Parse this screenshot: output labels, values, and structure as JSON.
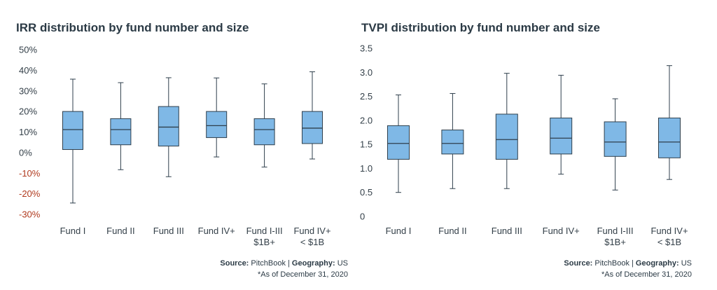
{
  "chart_data": [
    {
      "type": "box",
      "title": "IRR distribution by fund number and size",
      "categories": [
        [
          "Fund I"
        ],
        [
          "Fund II"
        ],
        [
          "Fund III"
        ],
        [
          "Fund IV+"
        ],
        [
          "Fund I-III",
          "$1B+"
        ],
        [
          "Fund IV+",
          "< $1B"
        ]
      ],
      "y_ticks": [
        "50%",
        "40%",
        "30%",
        "20%",
        "10%",
        "0%",
        "-10%",
        "-20%",
        "-30%"
      ],
      "ylim": [
        -30,
        50
      ],
      "negative_tick_color": "#b03a1e",
      "box_fill": "#7fb8e6",
      "box_stroke": "#2f3f4c",
      "series": [
        {
          "min": -24.5,
          "q1": 1.5,
          "median": 11.2,
          "q3": 20.0,
          "max": 35.7
        },
        {
          "min": -8.3,
          "q1": 3.8,
          "median": 11.2,
          "q3": 16.5,
          "max": 34.0
        },
        {
          "min": -11.7,
          "q1": 3.2,
          "median": 12.4,
          "q3": 22.4,
          "max": 36.4
        },
        {
          "min": -2.1,
          "q1": 7.3,
          "median": 13.1,
          "q3": 20.0,
          "max": 36.3
        },
        {
          "min": -7.0,
          "q1": 3.8,
          "median": 11.2,
          "q3": 16.5,
          "max": 33.4
        },
        {
          "min": -3.1,
          "q1": 4.4,
          "median": 11.9,
          "q3": 20.0,
          "max": 39.3
        }
      ]
    },
    {
      "type": "box",
      "title": "TVPI distribution by fund number and size",
      "categories": [
        [
          "Fund I"
        ],
        [
          "Fund II"
        ],
        [
          "Fund III"
        ],
        [
          "Fund IV+"
        ],
        [
          "Fund I-III",
          "$1B+"
        ],
        [
          "Fund IV+",
          "< $1B"
        ]
      ],
      "y_ticks": [
        "3.5",
        "3.0",
        "2.5",
        "2.0",
        "1.5",
        "1.0",
        "0.5",
        "0"
      ],
      "ylim": [
        0,
        3.5
      ],
      "box_fill": "#7fb8e6",
      "box_stroke": "#2f3f4c",
      "series": [
        {
          "min": 0.5,
          "q1": 1.19,
          "median": 1.52,
          "q3": 1.89,
          "max": 2.53
        },
        {
          "min": 0.58,
          "q1": 1.3,
          "median": 1.52,
          "q3": 1.8,
          "max": 2.56
        },
        {
          "min": 0.58,
          "q1": 1.19,
          "median": 1.6,
          "q3": 2.13,
          "max": 2.98
        },
        {
          "min": 0.88,
          "q1": 1.3,
          "median": 1.63,
          "q3": 2.05,
          "max": 2.94
        },
        {
          "min": 0.55,
          "q1": 1.25,
          "median": 1.55,
          "q3": 1.97,
          "max": 2.45
        },
        {
          "min": 0.77,
          "q1": 1.22,
          "median": 1.55,
          "q3": 2.05,
          "max": 3.14
        }
      ]
    }
  ],
  "source": {
    "source_label": "Source:",
    "source_value": " PitchBook | ",
    "geo_label": "Geography:",
    "geo_value": " US",
    "note": "*As of December 31, 2020"
  }
}
